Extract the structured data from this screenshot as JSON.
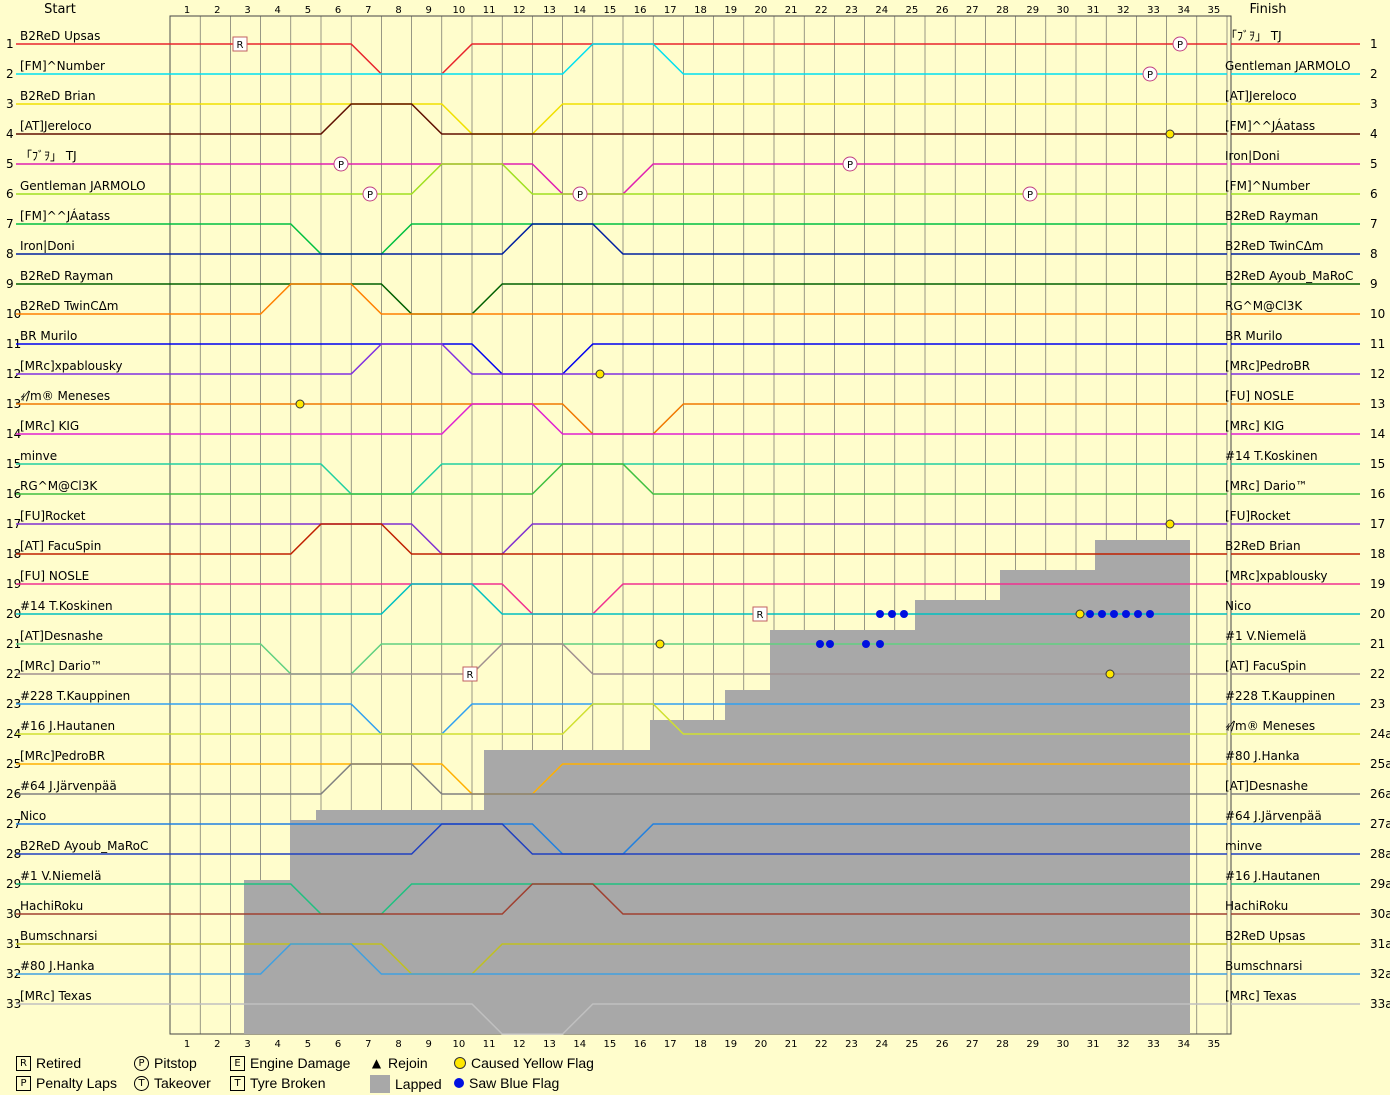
{
  "chart_data": {
    "type": "line",
    "title": "",
    "header_left": "Start",
    "header_right": "Finish",
    "laps": 35,
    "positions": 33,
    "start_order": [
      "B2ReD Upsas",
      "[FM]^Number",
      "B2ReD Brian",
      "[AT]Jereloco",
      "「ﾌﾞｦ」 TJ",
      "Gentleman JARMOLO",
      "[FM]^^JÁatass",
      "Iron|Doni",
      "B2ReD Rayman",
      "B2ReD TwinCΔm",
      "BR Murilo",
      "[MRc]xpablousky",
      "ｨ/̸m® Meneses",
      "[MRc] KIG",
      "minve",
      "RG^M@Cl3K",
      "[FU]Rocket",
      "[AT] FacuSpin",
      "[FU] NOSLE",
      "#14 T.Koskinen",
      "[AT]Desnashe",
      "[MRc] Dario™",
      "#228 T.Kauppinen",
      "#16 J.Hautanen",
      "[MRc]PedroBR",
      "#64 J.Järvenpää",
      "Nico",
      "B2ReD Ayoub_MaRoC",
      "#1 V.Niemelä",
      "HachiRoku",
      "Bumschnarsi",
      "#80 J.Hanka",
      "[MRc] Texas"
    ],
    "finish_order": [
      "「ﾌﾞｦ」 TJ",
      "Gentleman JARMOLO",
      "[AT]Jereloco",
      "[FM]^^JÁatass",
      "Iron|Doni",
      "[FM]^Number",
      "B2ReD Rayman",
      "B2ReD TwinCΔm",
      "B2ReD Ayoub_MaRoC",
      "RG^M@Cl3K",
      "BR Murilo",
      "[MRc]PedroBR",
      "[FU] NOSLE",
      "[MRc] KIG",
      "#14 T.Koskinen",
      "[MRc] Dario™",
      "[FU]Rocket",
      "B2ReD Brian",
      "[MRc]xpablousky",
      "Nico",
      "#1 V.Niemelä",
      "[AT] FacuSpin",
      "#228 T.Kauppinen",
      "ｨ/̸m® Meneses",
      "#80 J.Hanka",
      "[AT]Desnashe",
      "#64 J.Järvenpää",
      "minve",
      "#16 J.Hautanen",
      "HachiRoku",
      "B2ReD Upsas",
      "Bumschnarsi",
      "[MRc] Texas"
    ],
    "finish_suffix": [
      "",
      "",
      "",
      "",
      "",
      "",
      "",
      "",
      "",
      "",
      "",
      "",
      "",
      "",
      "",
      "",
      "",
      "",
      "",
      "",
      "",
      "",
      "",
      "a",
      "a",
      "a",
      "a",
      "a",
      "a",
      "a",
      "a",
      "a",
      "a"
    ],
    "colors": [
      "#e8242c",
      "#00e0f0",
      "#f0e000",
      "#601000",
      "#e020b0",
      "#a0e020",
      "#00c040",
      "#0020a0",
      "#006000",
      "#ff8000",
      "#0000f0",
      "#8030e0",
      "#f07800",
      "#e020d0",
      "#20d0a0",
      "#40c040",
      "#8030d0",
      "#c02000",
      "#f03090",
      "#00c0c0",
      "#60d080",
      "#a09090",
      "#30a0f0",
      "#d0e030",
      "#ffb000",
      "#808080",
      "#2080e0",
      "#2040c0",
      "#20c080",
      "#a04030",
      "#c0c020",
      "#40a0e0",
      "#c0c0c0"
    ],
    "legend": {
      "retired": "Retired",
      "penalty": "Penalty Laps",
      "pitstop": "Pitstop",
      "takeover": "Takeover",
      "engine": "Engine Damage",
      "tyre": "Tyre Broken",
      "rejoin": "Rejoin",
      "lapped": "Lapped",
      "yellow": "Caused Yellow Flag",
      "blue": "Saw Blue Flag"
    }
  }
}
